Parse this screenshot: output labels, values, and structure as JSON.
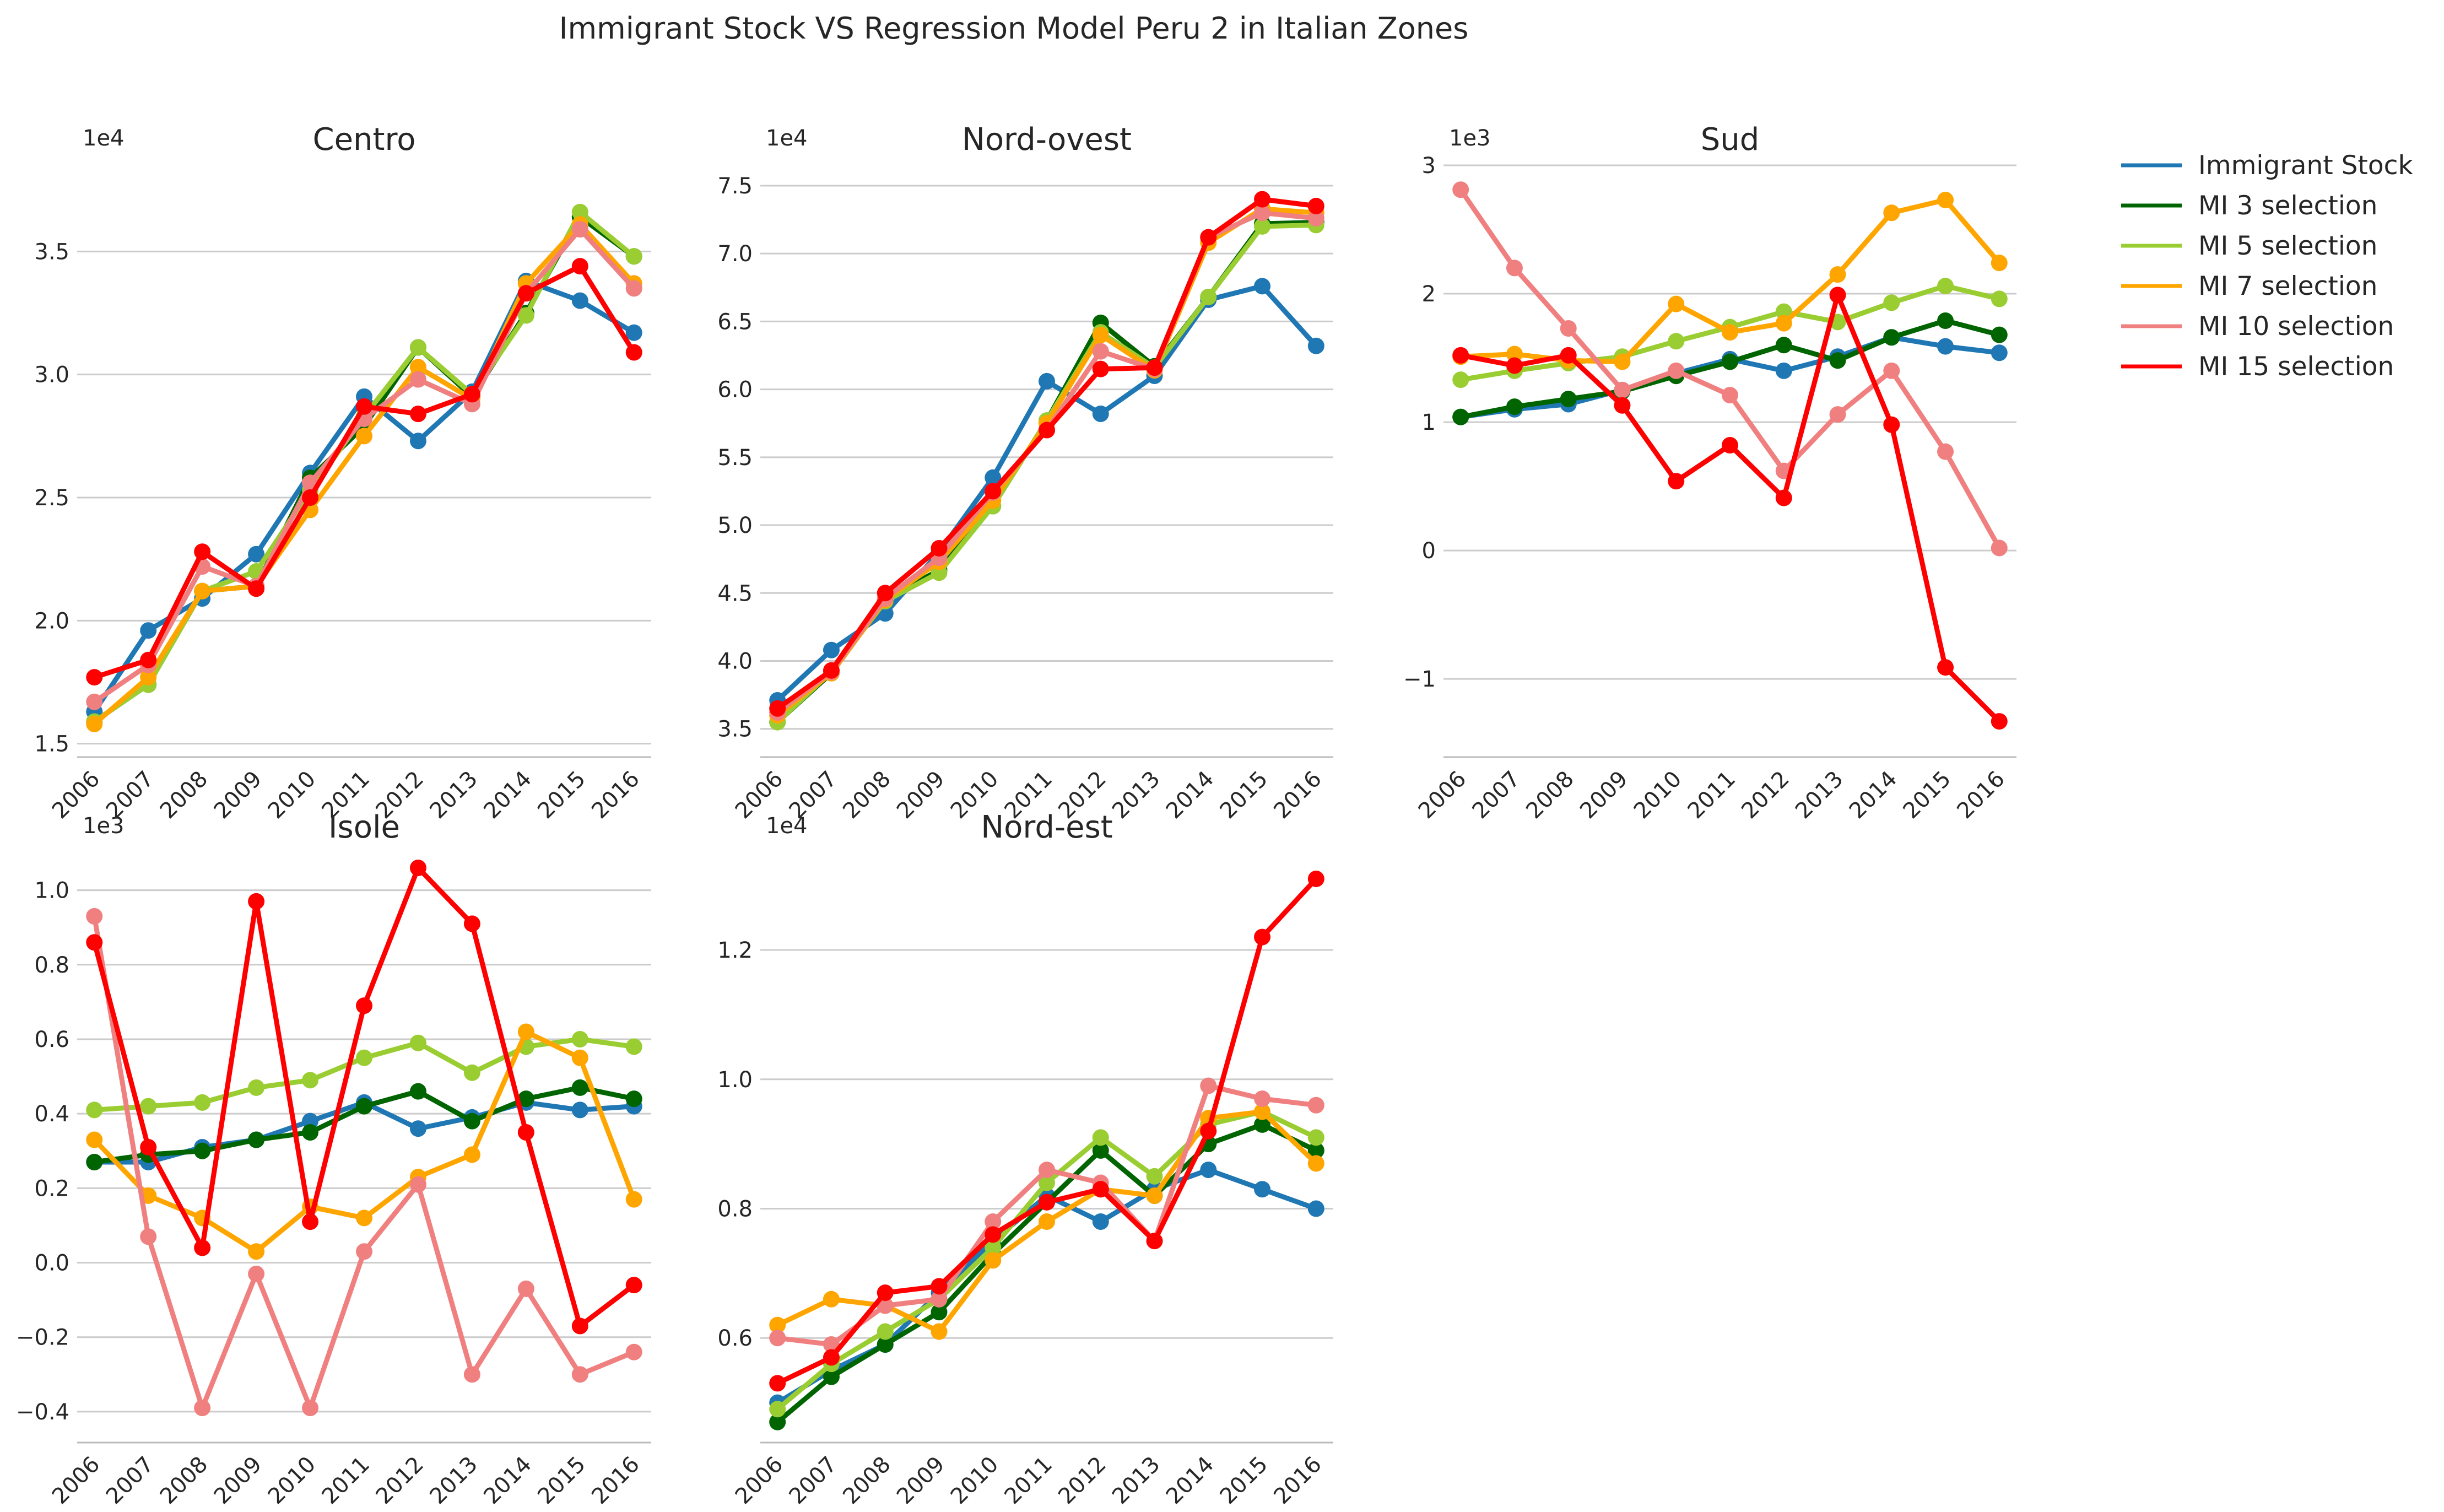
{
  "figure": {
    "title": "Immigrant Stock VS Regression Model Peru 2 in Italian Zones"
  },
  "legend": {
    "placement": "top-right, outside",
    "entries": [
      {
        "label": "Immigrant Stock",
        "color": "#1f77b4"
      },
      {
        "label": "MI 3 selection",
        "color": "#006400"
      },
      {
        "label": "MI 5 selection",
        "color": "#9acd32"
      },
      {
        "label": "MI 7 selection",
        "color": "#ffa500"
      },
      {
        "label": "MI 10 selection",
        "color": "#f08080"
      },
      {
        "label": "MI 15 selection",
        "color": "#ff0000"
      }
    ]
  },
  "chart_data": [
    {
      "type": "line",
      "title": "Centro",
      "scale_label": "1e4",
      "x": [
        "2006",
        "2007",
        "2008",
        "2009",
        "2010",
        "2011",
        "2012",
        "2013",
        "2014",
        "2015",
        "2016"
      ],
      "ylim": [
        1.45,
        3.85
      ],
      "yticks": [
        1.5,
        2.0,
        2.5,
        3.0,
        3.5
      ],
      "ytick_labels": [
        "1.5",
        "2.0",
        "2.5",
        "3.0",
        "3.5"
      ],
      "grid": "horizontal",
      "series": [
        {
          "name": "Immigrant Stock",
          "color": "#1f77b4",
          "values": [
            1.63,
            1.96,
            2.09,
            2.27,
            2.6,
            2.91,
            2.73,
            2.93,
            3.38,
            3.3,
            3.17
          ]
        },
        {
          "name": "MI 3 selection",
          "color": "#006400",
          "values": [
            1.59,
            1.74,
            2.12,
            2.14,
            2.58,
            2.79,
            3.11,
            2.91,
            3.25,
            3.64,
            3.48
          ]
        },
        {
          "name": "MI 5 selection",
          "color": "#9acd32",
          "values": [
            1.59,
            1.74,
            2.12,
            2.2,
            2.53,
            2.83,
            3.11,
            2.92,
            3.24,
            3.66,
            3.48
          ]
        },
        {
          "name": "MI 7 selection",
          "color": "#ffa500",
          "values": [
            1.58,
            1.77,
            2.12,
            2.14,
            2.45,
            2.75,
            3.03,
            2.9,
            3.37,
            3.61,
            3.37
          ]
        },
        {
          "name": "MI 10 selection",
          "color": "#f08080",
          "values": [
            1.67,
            1.82,
            2.22,
            2.14,
            2.56,
            2.82,
            2.98,
            2.88,
            3.33,
            3.59,
            3.35
          ]
        },
        {
          "name": "MI 15 selection",
          "color": "#ff0000",
          "values": [
            1.77,
            1.84,
            2.28,
            2.13,
            2.5,
            2.87,
            2.84,
            2.92,
            3.33,
            3.44,
            3.09
          ]
        }
      ]
    },
    {
      "type": "line",
      "title": "Nord-ovest",
      "scale_label": "1e4",
      "x": [
        "2006",
        "2007",
        "2008",
        "2009",
        "2010",
        "2011",
        "2012",
        "2013",
        "2014",
        "2015",
        "2016"
      ],
      "ylim": [
        3.3,
        7.65
      ],
      "yticks": [
        3.5,
        4.0,
        4.5,
        5.0,
        5.5,
        6.0,
        6.5,
        7.0,
        7.5
      ],
      "ytick_labels": [
        "3.5",
        "4.0",
        "4.5",
        "5.0",
        "5.5",
        "6.0",
        "6.5",
        "7.0",
        "7.5"
      ],
      "grid": "horizontal",
      "series": [
        {
          "name": "Immigrant Stock",
          "color": "#1f77b4",
          "values": [
            3.71,
            4.08,
            4.35,
            4.8,
            5.35,
            6.06,
            5.82,
            6.1,
            6.66,
            6.76,
            6.32
          ]
        },
        {
          "name": "MI 3 selection",
          "color": "#006400",
          "values": [
            3.55,
            3.91,
            4.45,
            4.67,
            5.14,
            5.77,
            6.49,
            6.17,
            6.68,
            7.22,
            7.23
          ]
        },
        {
          "name": "MI 5 selection",
          "color": "#9acd32",
          "values": [
            3.55,
            3.92,
            4.44,
            4.65,
            5.14,
            5.77,
            6.42,
            6.16,
            6.68,
            7.2,
            7.21
          ]
        },
        {
          "name": "MI 7 selection",
          "color": "#ffa500",
          "values": [
            3.6,
            3.91,
            4.45,
            4.73,
            5.18,
            5.75,
            6.4,
            6.14,
            7.08,
            7.33,
            7.3
          ]
        },
        {
          "name": "MI 10 selection",
          "color": "#f08080",
          "values": [
            3.62,
            3.92,
            4.46,
            4.76,
            5.24,
            5.7,
            6.28,
            6.15,
            7.12,
            7.3,
            7.26
          ]
        },
        {
          "name": "MI 15 selection",
          "color": "#ff0000",
          "values": [
            3.65,
            3.93,
            4.5,
            4.83,
            5.25,
            5.7,
            6.15,
            6.16,
            7.12,
            7.4,
            7.35
          ]
        }
      ]
    },
    {
      "type": "line",
      "title": "Sud",
      "scale_label": "1e3",
      "x": [
        "2006",
        "2007",
        "2008",
        "2009",
        "2010",
        "2011",
        "2012",
        "2013",
        "2014",
        "2015",
        "2016"
      ],
      "ylim": [
        -1.6,
        3.0
      ],
      "yticks": [
        -1,
        0,
        1,
        2,
        3
      ],
      "ytick_labels": [
        "−1",
        "0",
        "1",
        "2",
        "3"
      ],
      "grid": "horizontal",
      "series": [
        {
          "name": "Immigrant Stock",
          "color": "#1f77b4",
          "values": [
            1.04,
            1.1,
            1.14,
            1.25,
            1.38,
            1.49,
            1.4,
            1.51,
            1.66,
            1.59,
            1.54
          ]
        },
        {
          "name": "MI 3 selection",
          "color": "#006400",
          "values": [
            1.04,
            1.12,
            1.18,
            1.24,
            1.36,
            1.47,
            1.6,
            1.48,
            1.66,
            1.79,
            1.68
          ]
        },
        {
          "name": "MI 5 selection",
          "color": "#9acd32",
          "values": [
            1.33,
            1.4,
            1.46,
            1.51,
            1.63,
            1.74,
            1.86,
            1.78,
            1.93,
            2.06,
            1.96
          ]
        },
        {
          "name": "MI 7 selection",
          "color": "#ffa500",
          "values": [
            1.51,
            1.53,
            1.48,
            1.47,
            1.92,
            1.7,
            1.77,
            2.15,
            2.63,
            2.73,
            2.24
          ]
        },
        {
          "name": "MI 10 selection",
          "color": "#f08080",
          "values": [
            2.81,
            2.2,
            1.73,
            1.25,
            1.4,
            1.21,
            0.62,
            1.06,
            1.4,
            0.77,
            0.02
          ]
        },
        {
          "name": "MI 15 selection",
          "color": "#ff0000",
          "values": [
            1.52,
            1.44,
            1.52,
            1.13,
            0.54,
            0.82,
            0.41,
            1.99,
            0.98,
            -0.91,
            -1.33
          ]
        }
      ]
    },
    {
      "type": "line",
      "title": "Isole",
      "scale_label": "1e3",
      "x": [
        "2006",
        "2007",
        "2008",
        "2009",
        "2010",
        "2011",
        "2012",
        "2013",
        "2014",
        "2015",
        "2016"
      ],
      "ylim": [
        -0.48,
        1.1
      ],
      "yticks": [
        -0.4,
        -0.2,
        0.0,
        0.2,
        0.4,
        0.6,
        0.8,
        1.0
      ],
      "ytick_labels": [
        "−0.4",
        "−0.2",
        "0.0",
        "0.2",
        "0.4",
        "0.6",
        "0.8",
        "1.0"
      ],
      "grid": "horizontal",
      "series": [
        {
          "name": "Immigrant Stock",
          "color": "#1f77b4",
          "values": [
            0.27,
            0.27,
            0.31,
            0.33,
            0.38,
            0.43,
            0.36,
            0.39,
            0.43,
            0.41,
            0.42
          ]
        },
        {
          "name": "MI 3 selection",
          "color": "#006400",
          "values": [
            0.27,
            0.29,
            0.3,
            0.33,
            0.35,
            0.42,
            0.46,
            0.38,
            0.44,
            0.47,
            0.44
          ]
        },
        {
          "name": "MI 5 selection",
          "color": "#9acd32",
          "values": [
            0.41,
            0.42,
            0.43,
            0.47,
            0.49,
            0.55,
            0.59,
            0.51,
            0.58,
            0.6,
            0.58
          ]
        },
        {
          "name": "MI 7 selection",
          "color": "#ffa500",
          "values": [
            0.33,
            0.18,
            0.12,
            0.03,
            0.15,
            0.12,
            0.23,
            0.29,
            0.62,
            0.55,
            0.17
          ]
        },
        {
          "name": "MI 10 selection",
          "color": "#f08080",
          "values": [
            0.93,
            0.07,
            -0.39,
            -0.03,
            -0.39,
            0.03,
            0.21,
            -0.3,
            -0.07,
            -0.3,
            -0.24
          ]
        },
        {
          "name": "MI 15 selection",
          "color": "#ff0000",
          "values": [
            0.86,
            0.31,
            0.04,
            0.97,
            0.11,
            0.69,
            1.06,
            0.91,
            0.35,
            -0.17,
            -0.06
          ]
        }
      ]
    },
    {
      "type": "line",
      "title": "Nord-est",
      "scale_label": "1e4",
      "x": [
        "2006",
        "2007",
        "2008",
        "2009",
        "2010",
        "2011",
        "2012",
        "2013",
        "2014",
        "2015",
        "2016"
      ],
      "ylim": [
        0.44,
        1.35
      ],
      "yticks": [
        0.6,
        0.8,
        1.0,
        1.2
      ],
      "ytick_labels": [
        "0.6",
        "0.8",
        "1.0",
        "1.2"
      ],
      "grid": "horizontal",
      "series": [
        {
          "name": "Immigrant Stock",
          "color": "#1f77b4",
          "values": [
            0.5,
            0.55,
            0.59,
            0.67,
            0.75,
            0.82,
            0.78,
            0.83,
            0.86,
            0.83,
            0.8
          ]
        },
        {
          "name": "MI 3 selection",
          "color": "#006400",
          "values": [
            0.47,
            0.54,
            0.59,
            0.64,
            0.73,
            0.81,
            0.89,
            0.82,
            0.9,
            0.93,
            0.89
          ]
        },
        {
          "name": "MI 5 selection",
          "color": "#9acd32",
          "values": [
            0.49,
            0.56,
            0.61,
            0.66,
            0.74,
            0.84,
            0.91,
            0.85,
            0.93,
            0.95,
            0.91
          ]
        },
        {
          "name": "MI 7 selection",
          "color": "#ffa500",
          "values": [
            0.62,
            0.66,
            0.65,
            0.61,
            0.72,
            0.78,
            0.83,
            0.82,
            0.94,
            0.95,
            0.87
          ]
        },
        {
          "name": "MI 10 selection",
          "color": "#f08080",
          "values": [
            0.6,
            0.59,
            0.65,
            0.66,
            0.78,
            0.86,
            0.84,
            0.75,
            0.99,
            0.97,
            0.96
          ]
        },
        {
          "name": "MI 15 selection",
          "color": "#ff0000",
          "values": [
            0.53,
            0.57,
            0.67,
            0.68,
            0.76,
            0.81,
            0.83,
            0.75,
            0.92,
            1.22,
            1.31
          ]
        }
      ]
    }
  ]
}
